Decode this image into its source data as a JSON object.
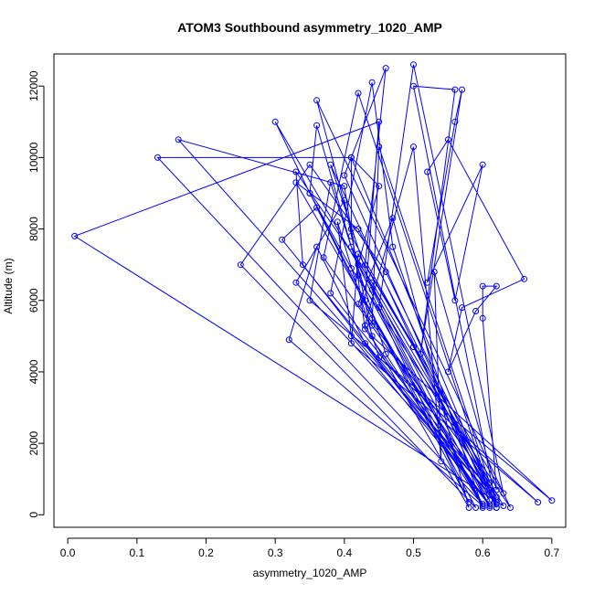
{
  "colors": {
    "series": "#0000ff",
    "axis": "#000000",
    "background": "#ffffff"
  },
  "chart_data": {
    "type": "line",
    "title": "ATOM3 Southbound asymmetry_1020_AMP",
    "xlabel": "asymmetry_1020_AMP",
    "ylabel": "Altitude (m)",
    "xlim": [
      -0.02,
      0.72
    ],
    "ylim": [
      -350,
      12900
    ],
    "xticks": [
      0.0,
      0.1,
      0.2,
      0.3,
      0.4,
      0.5,
      0.6,
      0.7
    ],
    "xtick_labels": [
      "0.0",
      "0.1",
      "0.2",
      "0.3",
      "0.4",
      "0.5",
      "0.6",
      "0.7"
    ],
    "yticks": [
      0,
      2000,
      4000,
      6000,
      8000,
      10000,
      12000
    ],
    "ytick_labels": [
      "0",
      "2000",
      "4000",
      "6000",
      "8000",
      "10000",
      "12000"
    ],
    "grid": false,
    "legend": "none",
    "marker": "open-circle",
    "series": [
      {
        "points": [
          [
            0.62,
            200
          ],
          [
            0.41,
            10000
          ],
          [
            0.45,
            9200
          ],
          [
            0.42,
            7000
          ],
          [
            0.58,
            350
          ],
          [
            0.35,
            9000
          ],
          [
            0.36,
            10900
          ],
          [
            0.41,
            7500
          ],
          [
            0.61,
            200
          ],
          [
            0.38,
            9800
          ],
          [
            0.44,
            6300
          ],
          [
            0.6,
            250
          ],
          [
            0.33,
            9300
          ],
          [
            0.42,
            8000
          ],
          [
            0.62,
            300
          ],
          [
            0.31,
            7700
          ],
          [
            0.36,
            8600
          ],
          [
            0.44,
            5500
          ],
          [
            0.61,
            400
          ],
          [
            0.4,
            9500
          ],
          [
            0.46,
            12500
          ],
          [
            0.43,
            7000
          ],
          [
            0.63,
            600
          ],
          [
            0.5,
            12600
          ],
          [
            0.45,
            5800
          ],
          [
            0.6,
            200
          ],
          [
            0.47,
            7500
          ],
          [
            0.44,
            12100
          ],
          [
            0.38,
            6200
          ],
          [
            0.61,
            700
          ],
          [
            0.42,
            11800
          ],
          [
            0.37,
            7200
          ],
          [
            0.62,
            350
          ],
          [
            0.3,
            11000
          ],
          [
            0.35,
            9000
          ],
          [
            0.41,
            6900
          ],
          [
            0.64,
            200
          ],
          [
            0.36,
            11600
          ],
          [
            0.41,
            8000
          ],
          [
            0.43,
            5200
          ],
          [
            0.61,
            250
          ],
          [
            0.34,
            7000
          ],
          [
            0.33,
            9600
          ],
          [
            0.44,
            6500
          ],
          [
            0.62,
            500
          ],
          [
            0.16,
            10500
          ],
          [
            0.4,
            9200
          ],
          [
            0.42,
            6700
          ],
          [
            0.6,
            300
          ],
          [
            0.13,
            10000
          ],
          [
            0.41,
            10000
          ],
          [
            0.41,
            7800
          ],
          [
            0.63,
            250
          ],
          [
            0.01,
            7800
          ],
          [
            0.45,
            11000
          ],
          [
            0.43,
            6000
          ],
          [
            0.59,
            200
          ],
          [
            0.25,
            7000
          ],
          [
            0.35,
            9800
          ],
          [
            0.46,
            6800
          ],
          [
            0.62,
            400
          ],
          [
            0.33,
            6500
          ],
          [
            0.4,
            8800
          ],
          [
            0.44,
            5000
          ],
          [
            0.7,
            400
          ],
          [
            0.35,
            6000
          ],
          [
            0.38,
            9300
          ],
          [
            0.46,
            4500
          ],
          [
            0.6,
            250
          ],
          [
            0.32,
            4900
          ],
          [
            0.36,
            7500
          ],
          [
            0.43,
            4800
          ],
          [
            0.61,
            300
          ],
          [
            0.41,
            5000
          ],
          [
            0.39,
            8200
          ],
          [
            0.45,
            4400
          ],
          [
            0.68,
            350
          ],
          [
            0.41,
            4800
          ],
          [
            0.42,
            7300
          ],
          [
            0.5,
            4700
          ],
          [
            0.62,
            200
          ],
          [
            0.5,
            12000
          ],
          [
            0.56,
            11900
          ],
          [
            0.51,
            4500
          ],
          [
            0.57,
            11900
          ],
          [
            0.56,
            11000
          ],
          [
            0.52,
            6500
          ],
          [
            0.6,
            9800
          ],
          [
            0.56,
            6000
          ],
          [
            0.52,
            9600
          ],
          [
            0.55,
            10500
          ],
          [
            0.66,
            6600
          ],
          [
            0.57,
            5800
          ],
          [
            0.55,
            4000
          ],
          [
            0.59,
            5700
          ],
          [
            0.62,
            6400
          ],
          [
            0.6,
            6400
          ],
          [
            0.6,
            5500
          ],
          [
            0.62,
            700
          ],
          [
            0.53,
            6800
          ],
          [
            0.54,
            1500
          ],
          [
            0.5,
            10300
          ],
          [
            0.43,
            5300
          ],
          [
            0.58,
            200
          ],
          [
            0.47,
            8300
          ],
          [
            0.42,
            5900
          ],
          [
            0.61,
            900
          ],
          [
            0.45,
            10300
          ],
          [
            0.44,
            5300
          ]
        ]
      }
    ]
  }
}
